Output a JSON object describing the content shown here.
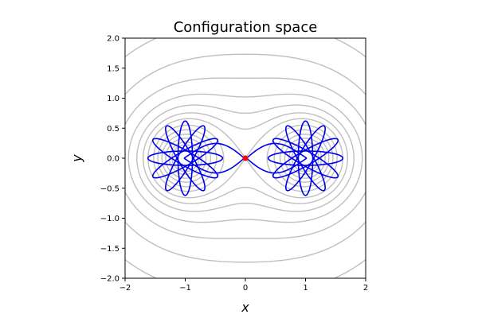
{
  "chart_data": {
    "type": "line",
    "title": "Configuration space",
    "xlabel": "x",
    "ylabel": "y",
    "xlim": [
      -2,
      2
    ],
    "ylim": [
      -2,
      2
    ],
    "xticks": [
      "−2",
      "−1",
      "0",
      "1",
      "2"
    ],
    "yticks": [
      "−2.0",
      "−1.5",
      "−1.0",
      "−0.5",
      "0.0",
      "0.5",
      "1.0",
      "1.5",
      "2.0"
    ],
    "grid": false,
    "legend": "none",
    "wells": [
      [
        -1,
        0
      ],
      [
        1,
        0
      ]
    ],
    "contour_levels": [
      0.4,
      0.6,
      0.8,
      1.0,
      1.2,
      1.4,
      1.6,
      1.8,
      2.0,
      2.3,
      2.6,
      3.0,
      3.5,
      4.2,
      5.0
    ],
    "start_point": [
      0,
      0
    ],
    "trajectory_petals": 6,
    "colors": {
      "contour": "#bfbfbf",
      "trajectory": "#0000ee",
      "start_point": "#ff0000",
      "axes": "#000000"
    }
  }
}
